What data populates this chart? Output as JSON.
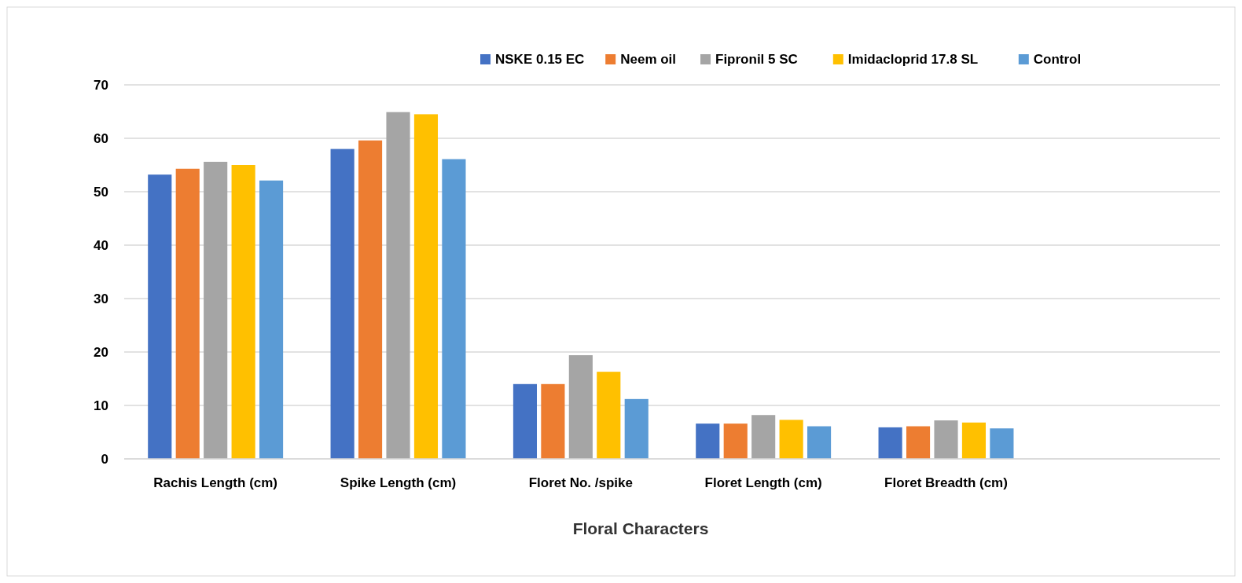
{
  "chart_data": {
    "type": "bar",
    "xlabel": "Floral Characters",
    "categories": [
      "Rachis Length (cm)",
      "Spike Length (cm)",
      "Floret No. /spike",
      "Floret Length (cm)",
      "Floret Breadth (cm)",
      null
    ],
    "series": [
      {
        "name": "NSKE 0.15 EC",
        "color": "#4472c4",
        "values": [
          53.2,
          58.0,
          14.0,
          6.6,
          5.9,
          null
        ]
      },
      {
        "name": "Neem oil",
        "color": "#ed7d31",
        "values": [
          54.3,
          59.6,
          14.0,
          6.6,
          6.1,
          null
        ]
      },
      {
        "name": "Fipronil 5 SC",
        "color": "#a5a5a5",
        "values": [
          55.6,
          64.9,
          19.4,
          8.2,
          7.2,
          null
        ]
      },
      {
        "name": "Imidacloprid 17.8 SL",
        "color": "#ffc000",
        "values": [
          55.0,
          64.5,
          16.3,
          7.3,
          6.8,
          null
        ]
      },
      {
        "name": "Control",
        "color": "#5b9bd5",
        "values": [
          52.1,
          56.1,
          11.2,
          6.1,
          5.7,
          null
        ]
      }
    ],
    "ylim": [
      0,
      70
    ],
    "yticks": [
      0,
      10,
      20,
      30,
      40,
      50,
      60,
      70
    ],
    "grid": "y",
    "legend": "top right"
  }
}
